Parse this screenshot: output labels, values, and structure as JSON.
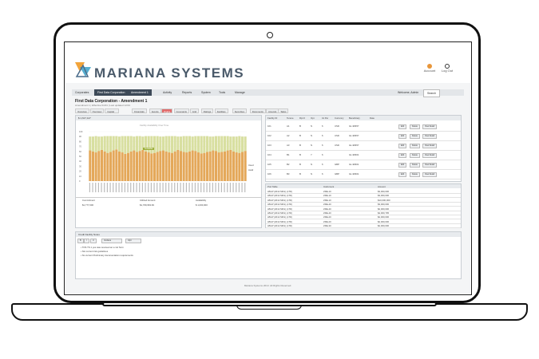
{
  "app": {
    "brand": "MARIANA SYSTEMS",
    "account_label": "Account",
    "logout_label": "Log Out"
  },
  "nav": {
    "items": [
      "Corporates",
      "First Data Corporation",
      "Amendment 1",
      "Activity",
      "Reports",
      "System",
      "Tools",
      "Manage"
    ],
    "active_index": 1,
    "right_user": "Welcome, Admin",
    "right_search": "Search"
  },
  "page": {
    "title": "First Data Corporation - Amendment 1",
    "subtitle": "Amendment 1 | Effective 01/01 | Last updated 12/31"
  },
  "tabs": [
    "Overview",
    "Overview",
    "Capital Structure",
    "Financials",
    "Events",
    "Rights",
    "Covenants",
    "Grid",
    "Ratings",
    "Facilities",
    "Securities",
    "Documents",
    "Amends",
    "Tasks"
  ],
  "active_tab_index": 5,
  "chart_panel": {
    "header": "$ 1,617,127",
    "title": "Facility Availability Over Time",
    "tooltip": "Available",
    "legend": [
      "Used",
      "Avail"
    ],
    "table_headers": [
      "Commitment",
      "Utilized Amount",
      "Availability"
    ],
    "table_row": [
      "$1,777,000",
      "$1,769,963.99",
      "$ 1,000,000"
    ]
  },
  "chart_data": {
    "type": "bar",
    "ylim": [
      0,
      100
    ],
    "y_ticks": [
      "100",
      "90",
      "80",
      "70",
      "60",
      "50",
      "40",
      "30",
      "20",
      "10",
      "0"
    ],
    "series": [
      {
        "values": [
          62,
          60,
          58,
          61,
          63,
          60,
          57,
          59,
          62,
          64,
          60,
          58,
          55,
          57,
          60,
          62,
          59,
          61,
          63,
          60,
          58,
          56,
          57,
          59,
          61,
          62,
          60,
          58,
          57,
          60,
          63,
          61,
          59,
          58,
          60,
          62,
          61,
          58,
          56,
          57,
          59,
          60,
          62,
          61,
          58,
          59,
          60,
          62,
          63,
          60,
          58,
          57,
          59,
          61
        ]
      },
      {
        "values": [
          28,
          30,
          33,
          29,
          27,
          31,
          34,
          32,
          29,
          27,
          30,
          33,
          36,
          34,
          31,
          28,
          32,
          30,
          27,
          31,
          33,
          35,
          34,
          32,
          29,
          28,
          31,
          33,
          34,
          31,
          27,
          29,
          32,
          33,
          31,
          28,
          30,
          33,
          35,
          34,
          32,
          30,
          28,
          30,
          33,
          32,
          31,
          29,
          27,
          30,
          32,
          34,
          31,
          29
        ]
      }
    ],
    "colors": {
      "used": "#e4a85a",
      "avail": "#d8dfa0"
    }
  },
  "grid_panel": {
    "columns": [
      "Facility ID",
      "Tenure",
      "Rpt #",
      "Opt",
      "Int Per",
      "Currency",
      "Beneficiary",
      "Date",
      ""
    ],
    "rows": [
      [
        "101",
        "A1",
        "B",
        "N",
        "6",
        "USD",
        "GL-98457",
        "",
        ""
      ],
      [
        "102",
        "A2",
        "B",
        "N",
        "6",
        "USD",
        "GL-98457",
        "",
        ""
      ],
      [
        "103",
        "A3",
        "B",
        "N",
        "6",
        "USD",
        "GL-98457",
        "",
        ""
      ],
      [
        "104",
        "B1",
        "B",
        "Y",
        "6",
        "",
        "GL-98461",
        "",
        ""
      ],
      [
        "105",
        "B2",
        "B",
        "N",
        "6",
        "GBP",
        "GL-98461",
        "",
        ""
      ],
      [
        "106",
        "B3",
        "B",
        "N",
        "6",
        "GBP",
        "GL-98461",
        "",
        ""
      ]
    ],
    "actions": [
      "Edit",
      "Delete",
      "View Detail"
    ]
  },
  "detail_panel": {
    "columns": [
      "Port Table",
      "Instrument",
      "Amount"
    ],
    "rows": [
      [
        "LBGP (2012 MFG) (LTD)",
        "ZRE-10",
        "$3,000,000"
      ],
      [
        "LBGP (2012 MFG) (LTD)",
        "ZRE-10",
        "$3,000,000"
      ],
      [
        "LBGP (2012 MFG) (LTD)",
        "ZRE-10",
        "$10,000,000"
      ],
      [
        "LBGP (2012 MFG) (LTD)",
        "ZRE-40",
        "$3,000,000"
      ],
      [
        "LBGP (2012 MFG) (LTD)",
        "ZRE-40",
        "$2,000,000"
      ],
      [
        "LBGP (2012 MFG) (LTD)",
        "ZRE-40",
        "$4,000,795"
      ],
      [
        "LBGP (2012 MFG) (LTD)",
        "ZRE-20",
        "$2,000,000"
      ],
      [
        "LBGP (2012 MFG) (LTD)",
        "ZRE-20",
        "$2,000,000"
      ],
      [
        "LBGP (2012 MFG) (LTD)",
        "ZRE-30",
        "$2,000,000"
      ]
    ]
  },
  "notes_panel": {
    "header": "Credit Facility Notes",
    "toolbar": [
      "B",
      "I",
      "U",
      "Verdana",
      "10pt"
    ],
    "lines": [
      "• TOS TS 1 yes was received an a 1st Term",
      "• Not current risk guidelines",
      "• No current Preliminary documentation requirements"
    ]
  },
  "footer": "Mariana Systems 2013. All Rights Reserved."
}
